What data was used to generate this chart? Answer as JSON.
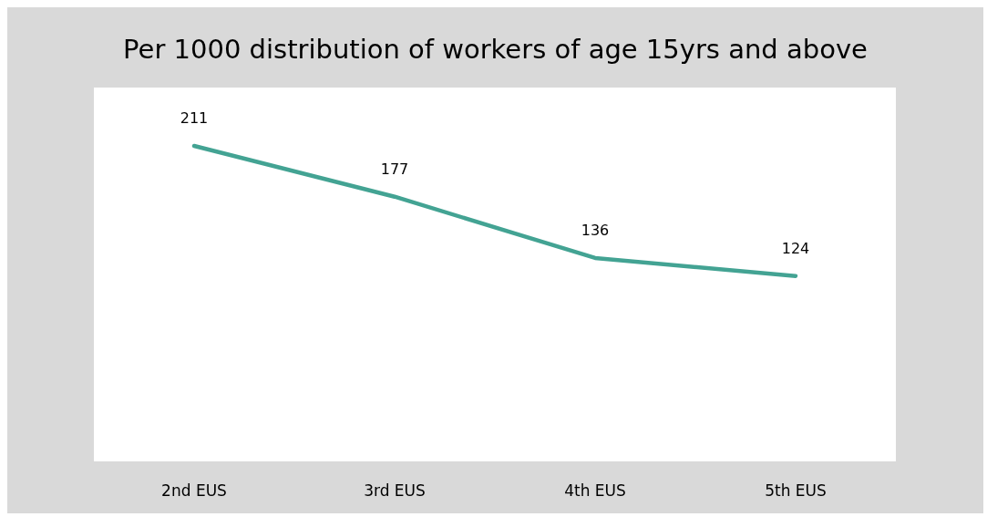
{
  "chart_data": {
    "type": "line",
    "title": "Per 1000 distribution of workers of age 15yrs and above",
    "categories": [
      "2nd EUS",
      "3rd EUS",
      "4th EUS",
      "5th EUS"
    ],
    "series": [
      {
        "color": "#43a393",
        "values": [
          211,
          177,
          136,
          124
        ]
      }
    ],
    "ylim": [
      0,
      250
    ],
    "data_labels": true
  }
}
